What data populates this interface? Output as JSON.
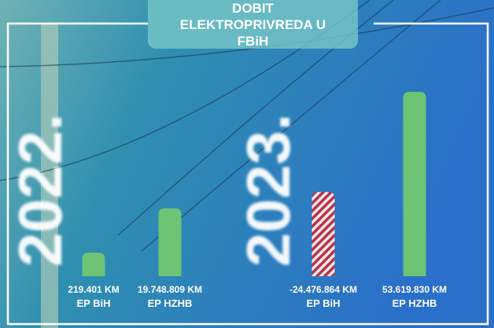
{
  "chart_data": {
    "type": "bar",
    "title": "DOBIT ELEKTROPRIVREDA U FBiH",
    "groups": [
      "2022.",
      "2023."
    ],
    "categories": [
      "EP BiH",
      "EP HZHB",
      "EP BiH",
      "EP HZHB"
    ],
    "category_groups": [
      0,
      0,
      1,
      1
    ],
    "values": [
      219401,
      19748809,
      -24476864,
      53619830
    ],
    "value_labels": [
      "219.401 KM",
      "19.748.809 KM",
      "-24.476.864 KM",
      "53.619.830 KM"
    ],
    "color": "#6cc474",
    "negative_color": "#b8324a"
  }
}
